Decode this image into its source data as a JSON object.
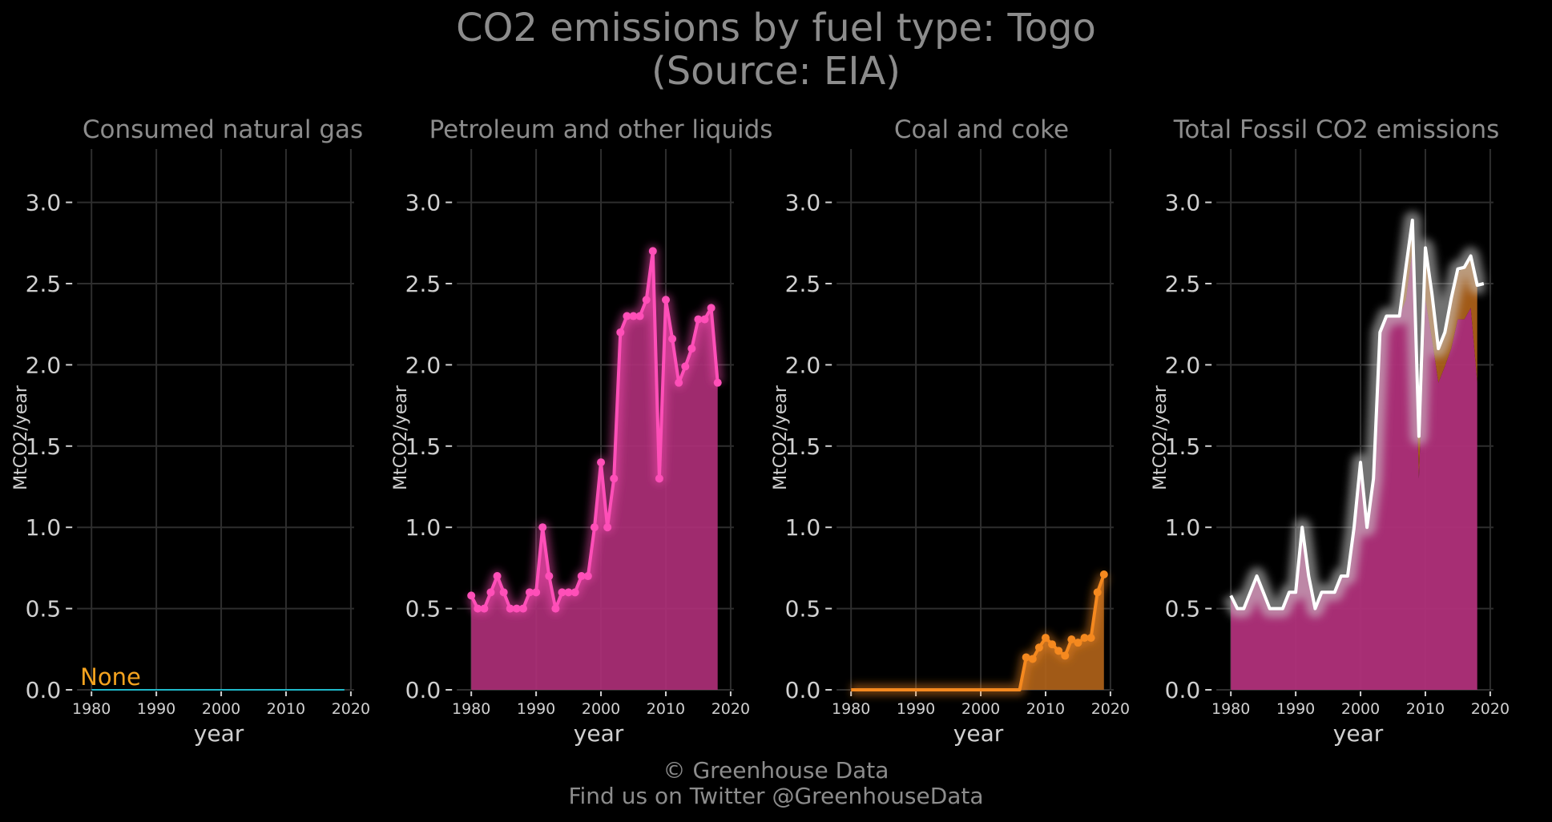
{
  "title_line1": "CO2 emissions by fuel type: Togo",
  "title_line2": "(Source: EIA)",
  "footer_line1": "© Greenhouse Data",
  "footer_line2": "Find us on Twitter @GreenhouseData",
  "colors": {
    "background": "#000000",
    "grid": "#2e2e2e",
    "text": "#d0d0d0",
    "muted": "#8c8c8c",
    "gas": "#1fb8c9",
    "petroleum": "#ff4fb8",
    "petroleum_fill": "#b0307a",
    "coal": "#f5891f",
    "coal_fill": "#b3641a",
    "total": "#ffffff",
    "none_label": "#f5a31f"
  },
  "chart_data": [
    {
      "type": "line",
      "title": "Consumed natural gas",
      "xlabel": "year",
      "ylabel": "MtCO2/year",
      "ylim": [
        0,
        3.2
      ],
      "xlim": [
        1978,
        2021
      ],
      "yticks": [
        "0.0",
        "0.5",
        "1.0",
        "1.5",
        "2.0",
        "2.5",
        "3.0"
      ],
      "xticks": [
        "1980",
        "1990",
        "2000",
        "2010",
        "2020"
      ],
      "grid": true,
      "annotation": "None",
      "series": [
        {
          "color": "gas",
          "x": [
            1980,
            2019
          ],
          "values": [
            0,
            0
          ]
        }
      ]
    },
    {
      "type": "area",
      "title": "Petroleum and other liquids",
      "xlabel": "year",
      "ylabel": "MtCO2/year",
      "ylim": [
        0,
        3.2
      ],
      "xlim": [
        1978,
        2021
      ],
      "yticks": [
        "0.0",
        "0.5",
        "1.0",
        "1.5",
        "2.0",
        "2.5",
        "3.0"
      ],
      "xticks": [
        "1980",
        "1990",
        "2000",
        "2010",
        "2020"
      ],
      "grid": true,
      "series": [
        {
          "color": "petroleum",
          "x": [
            1980,
            1981,
            1982,
            1983,
            1984,
            1985,
            1986,
            1987,
            1988,
            1989,
            1990,
            1991,
            1992,
            1993,
            1994,
            1995,
            1996,
            1997,
            1998,
            1999,
            2000,
            2001,
            2002,
            2003,
            2004,
            2005,
            2006,
            2007,
            2008,
            2009,
            2010,
            2011,
            2012,
            2013,
            2014,
            2015,
            2016,
            2017,
            2018
          ],
          "values": [
            0.58,
            0.5,
            0.5,
            0.6,
            0.7,
            0.6,
            0.5,
            0.5,
            0.5,
            0.6,
            0.6,
            1.0,
            0.7,
            0.5,
            0.6,
            0.6,
            0.6,
            0.7,
            0.7,
            1.0,
            1.4,
            1.0,
            1.3,
            2.2,
            2.3,
            2.3,
            2.3,
            2.4,
            2.7,
            1.3,
            2.4,
            2.16,
            1.89,
            1.99,
            2.1,
            2.28,
            2.28,
            2.35,
            1.89
          ]
        }
      ]
    },
    {
      "type": "area",
      "title": "Coal and coke",
      "xlabel": "year",
      "ylabel": "MtCO2/year",
      "ylim": [
        0,
        3.2
      ],
      "xlim": [
        1978,
        2021
      ],
      "yticks": [
        "0.0",
        "0.5",
        "1.0",
        "1.5",
        "2.0",
        "2.5",
        "3.0"
      ],
      "xticks": [
        "1980",
        "1990",
        "2000",
        "2010",
        "2020"
      ],
      "grid": true,
      "series": [
        {
          "color": "coal",
          "x": [
            1980,
            2006,
            2007,
            2008,
            2009,
            2010,
            2011,
            2012,
            2013,
            2014,
            2015,
            2016,
            2017,
            2018,
            2019
          ],
          "values": [
            0,
            0,
            0.2,
            0.19,
            0.26,
            0.32,
            0.28,
            0.24,
            0.21,
            0.31,
            0.29,
            0.32,
            0.32,
            0.6,
            0.71
          ]
        }
      ]
    },
    {
      "type": "area",
      "title": "Total Fossil CO2 emissions",
      "xlabel": "year",
      "ylabel": "MtCO2/year",
      "ylim": [
        0,
        3.2
      ],
      "xlim": [
        1978,
        2021
      ],
      "yticks": [
        "0.0",
        "0.5",
        "1.0",
        "1.5",
        "2.0",
        "2.5",
        "3.0"
      ],
      "xticks": [
        "1980",
        "1990",
        "2000",
        "2010",
        "2020"
      ],
      "grid": true,
      "series": [
        {
          "color": "total",
          "x": [
            1980,
            1981,
            1982,
            1983,
            1984,
            1985,
            1986,
            1987,
            1988,
            1989,
            1990,
            1991,
            1992,
            1993,
            1994,
            1995,
            1996,
            1997,
            1998,
            1999,
            2000,
            2001,
            2002,
            2003,
            2004,
            2005,
            2006,
            2007,
            2008,
            2009,
            2010,
            2011,
            2012,
            2013,
            2014,
            2015,
            2016,
            2017,
            2018,
            2019
          ],
          "values": [
            0.58,
            0.5,
            0.5,
            0.6,
            0.7,
            0.6,
            0.5,
            0.5,
            0.5,
            0.6,
            0.6,
            1.0,
            0.7,
            0.5,
            0.6,
            0.6,
            0.6,
            0.7,
            0.7,
            1.0,
            1.4,
            1.0,
            1.3,
            2.2,
            2.3,
            2.3,
            2.3,
            2.6,
            2.89,
            1.56,
            2.72,
            2.44,
            2.1,
            2.2,
            2.41,
            2.59,
            2.6,
            2.67,
            2.49,
            2.5
          ]
        }
      ]
    }
  ]
}
